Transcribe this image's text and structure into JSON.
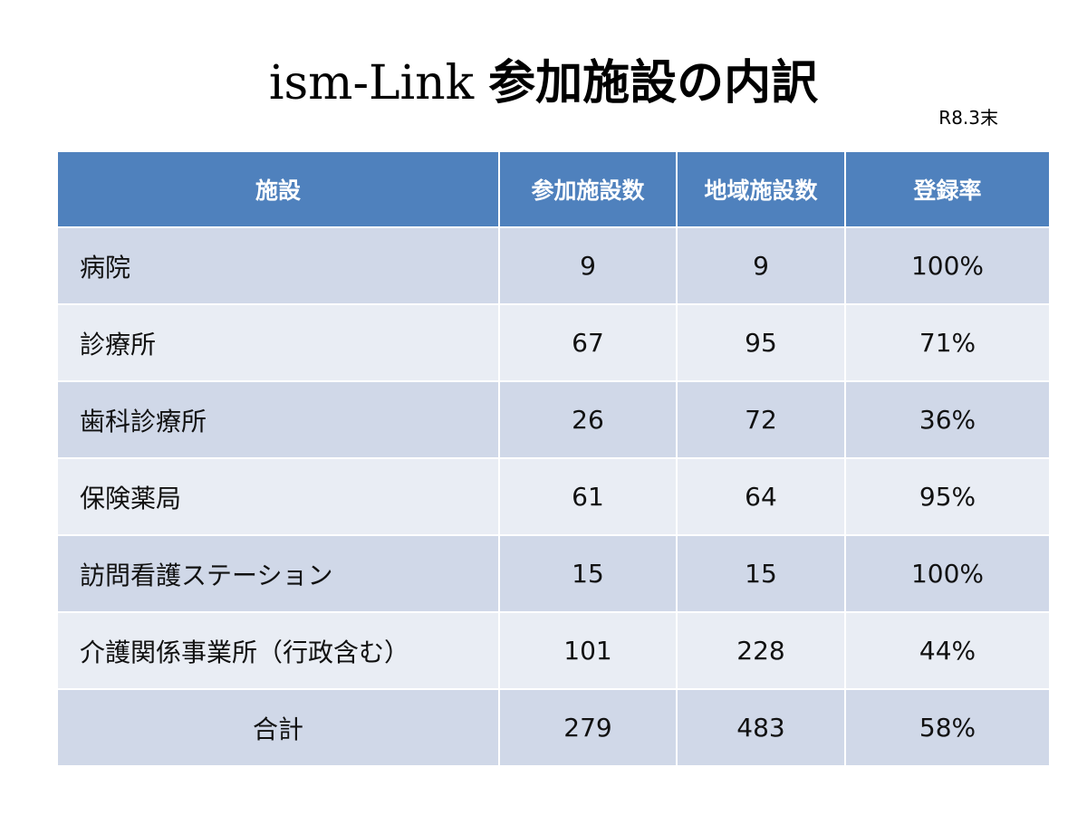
{
  "title": {
    "brand": "ism-Link",
    "text": "参加施設の内訳"
  },
  "date_note": "R8.3末",
  "table": {
    "headers": [
      "施設",
      "参加施設数",
      "地域施設数",
      "登録率"
    ],
    "rows": [
      {
        "facility": "病院",
        "participating": "9",
        "regional": "9",
        "rate": "100%"
      },
      {
        "facility": "診療所",
        "participating": "67",
        "regional": "95",
        "rate": "71%"
      },
      {
        "facility": "歯科診療所",
        "participating": "26",
        "regional": "72",
        "rate": "36%"
      },
      {
        "facility": "保険薬局",
        "participating": "61",
        "regional": "64",
        "rate": "95%"
      },
      {
        "facility": "訪問看護ステーション",
        "participating": "15",
        "regional": "15",
        "rate": "100%"
      },
      {
        "facility": "介護関係事業所（行政含む）",
        "participating": "101",
        "regional": "228",
        "rate": "44%"
      },
      {
        "facility": "合計",
        "participating": "279",
        "regional": "483",
        "rate": "58%"
      }
    ]
  },
  "colors": {
    "header_bg": "#4f81bd",
    "row_dark": "#d0d8e8",
    "row_light": "#e9edf4"
  }
}
